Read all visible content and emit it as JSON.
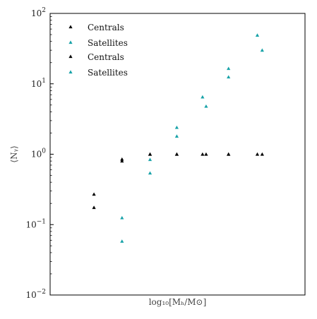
{
  "chart_data": {
    "type": "scatter",
    "title": "",
    "xlabel": "log₁₀[Mₕ/M⊙]",
    "ylabel": "⟨Nᵧ⟩",
    "yscale": "log",
    "ylim": [
      0.01,
      100
    ],
    "y_ticks": [
      {
        "value": 0.01,
        "base": "10",
        "exp": "−2"
      },
      {
        "value": 0.1,
        "base": "10",
        "exp": "−1"
      },
      {
        "value": 1,
        "base": "10",
        "exp": "0"
      },
      {
        "value": 10,
        "base": "10",
        "exp": "1"
      },
      {
        "value": 100,
        "base": "10",
        "exp": "2"
      }
    ],
    "x_ticks_labeled": false,
    "grid": false,
    "legend_position": "top-left",
    "series": [
      {
        "name": "Centrals",
        "color": "#000000",
        "points": [
          {
            "x": 1.72,
            "y": 0.27
          },
          {
            "x": 2.82,
            "y": 0.85
          },
          {
            "x": 3.92,
            "y": 1.0
          },
          {
            "x": 4.97,
            "y": 1.0
          },
          {
            "x": 5.98,
            "y": 1.0
          },
          {
            "x": 7.0,
            "y": 1.0
          },
          {
            "x": 8.13,
            "y": 1.0
          }
        ]
      },
      {
        "name": "Satellites",
        "color": "#17a2a8",
        "points": [
          {
            "x": 2.82,
            "y": 0.125
          },
          {
            "x": 3.92,
            "y": 0.84
          },
          {
            "x": 4.97,
            "y": 2.4
          },
          {
            "x": 5.98,
            "y": 6.5
          },
          {
            "x": 7.0,
            "y": 16.5
          },
          {
            "x": 8.13,
            "y": 49
          }
        ]
      },
      {
        "name": "Centrals",
        "color": "#000000",
        "points": [
          {
            "x": 1.72,
            "y": 0.175
          },
          {
            "x": 2.82,
            "y": 0.8
          },
          {
            "x": 3.92,
            "y": 1.0
          },
          {
            "x": 4.97,
            "y": 1.0
          },
          {
            "x": 6.12,
            "y": 1.0
          },
          {
            "x": 7.0,
            "y": 1.0
          },
          {
            "x": 8.32,
            "y": 1.0
          }
        ]
      },
      {
        "name": "Satellites",
        "color": "#17a2a8",
        "points": [
          {
            "x": 2.82,
            "y": 0.058
          },
          {
            "x": 3.92,
            "y": 0.54
          },
          {
            "x": 4.97,
            "y": 1.8
          },
          {
            "x": 6.12,
            "y": 4.8
          },
          {
            "x": 7.0,
            "y": 12.5
          },
          {
            "x": 8.32,
            "y": 30
          }
        ]
      }
    ],
    "xlim": [
      0,
      10
    ]
  }
}
